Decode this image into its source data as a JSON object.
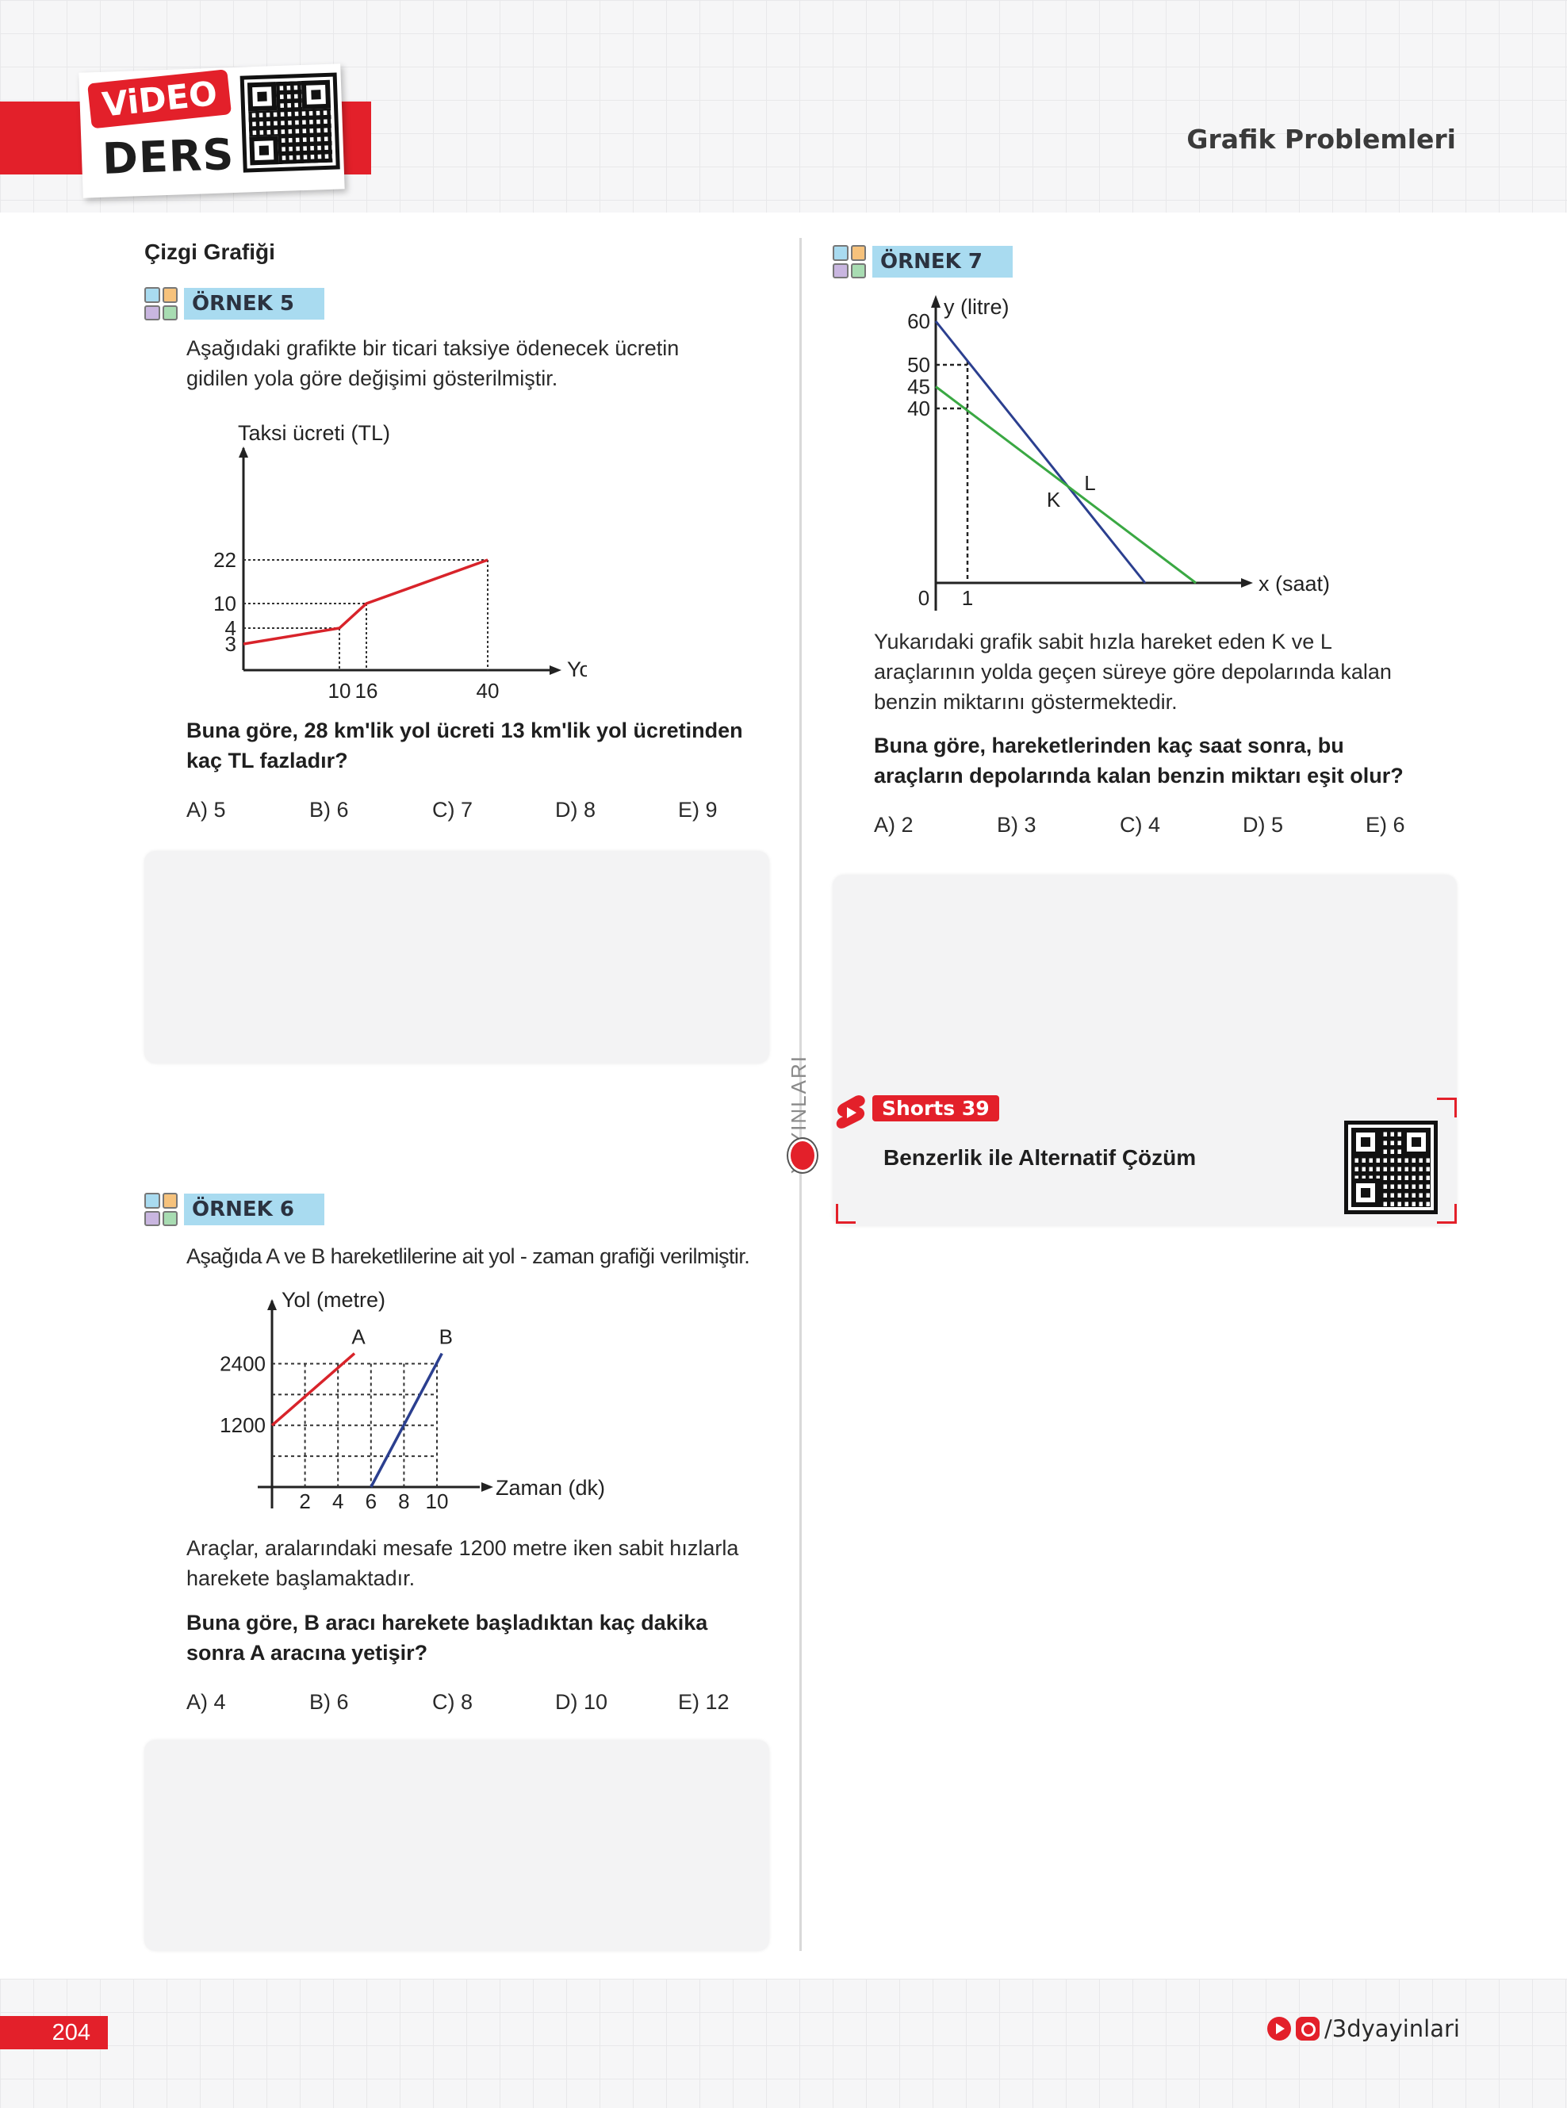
{
  "header": {
    "video_word": "ViDEO",
    "ders_word": "DERS",
    "section_title": "Grafik Problemleri"
  },
  "left_column": {
    "heading": "Çizgi Grafiği",
    "example5": {
      "tag": "ÖRNEK 5",
      "intro_line1": "Aşağıdaki grafikte bir ticari taksiye ödenecek ücretin",
      "intro_line2": "gidilen yola göre değişimi gösterilmiştir.",
      "question_line1": "Buna göre, 28 km'lik yol ücreti 13 km'lik yol ücretinden",
      "question_line2": "kaç TL fazladır?",
      "options": [
        "A) 5",
        "B) 6",
        "C) 7",
        "D) 8",
        "E) 9"
      ]
    },
    "example6": {
      "tag": "ÖRNEK 6",
      "intro": "Aşağıda A ve B hareketlilerine ait yol - zaman grafiği verilmiştir.",
      "text_line1": "Araçlar, aralarındaki mesafe 1200 metre iken sabit hızlarla",
      "text_line2": "harekete başlamaktadır.",
      "question_line1": "Buna göre, B aracı harekete başladıktan kaç dakika",
      "question_line2": "sonra A aracına yetişir?",
      "options": [
        "A) 4",
        "B) 6",
        "C) 8",
        "D) 10",
        "E) 12"
      ]
    }
  },
  "right_column": {
    "example7": {
      "tag": "ÖRNEK 7",
      "text_line1": "Yukarıdaki grafik sabit hızla hareket eden K ve L",
      "text_line2": "araçlarının yolda geçen süreye göre depolarında kalan",
      "text_line3": "benzin miktarını göstermektedir.",
      "question_line1": "Buna göre, hareketlerinden kaç saat sonra, bu",
      "question_line2": "araçların depolarında kalan benzin miktarı eşit olur?",
      "options": [
        "A) 2",
        "B) 3",
        "C) 4",
        "D) 5",
        "E) 6"
      ]
    },
    "shorts": {
      "badge": "Shorts 39",
      "title": "Benzerlik ile Alternatif Çözüm"
    }
  },
  "sidebar": {
    "publisher_vertical": "YAYINLARI"
  },
  "footer": {
    "page_number": "204",
    "social_handle": "/3dyayinlari"
  },
  "chart_data": [
    {
      "type": "line",
      "title": "",
      "ylabel": "Taksi ücreti (TL)",
      "xlabel": "Yol (km)",
      "x_ticks": [
        "10",
        "16",
        "40"
      ],
      "y_ticks": [
        "3",
        "4",
        "10",
        "22"
      ],
      "series": [
        {
          "x": [
            0,
            10,
            16,
            40
          ],
          "y": [
            3,
            4,
            10,
            22
          ],
          "color": "#d8232a"
        }
      ]
    },
    {
      "type": "line",
      "title": "",
      "ylabel": "Yol (metre)",
      "xlabel": "Zaman (dk)",
      "x_ticks": [
        "2",
        "4",
        "6",
        "8",
        "10"
      ],
      "y_ticks": [
        "1200",
        "2400"
      ],
      "series": [
        {
          "name": "A",
          "x": [
            0,
            5
          ],
          "y": [
            1200,
            2600
          ],
          "color": "#d8232a"
        },
        {
          "name": "B",
          "x": [
            6,
            10.3
          ],
          "y": [
            0,
            2600
          ],
          "color": "#2b3f8f"
        }
      ]
    },
    {
      "type": "line",
      "title": "",
      "ylabel": "y (litre)",
      "xlabel": "x (saat)",
      "x_ticks": [
        "0",
        "1"
      ],
      "y_ticks": [
        "40",
        "45",
        "50",
        "60"
      ],
      "series": [
        {
          "name": "K",
          "x": [
            0,
            6.6
          ],
          "y": [
            60,
            0
          ],
          "color": "#2b3f8f"
        },
        {
          "name": "L",
          "x": [
            0,
            8.2
          ],
          "y": [
            45,
            0
          ],
          "color": "#3aa843"
        }
      ]
    }
  ]
}
